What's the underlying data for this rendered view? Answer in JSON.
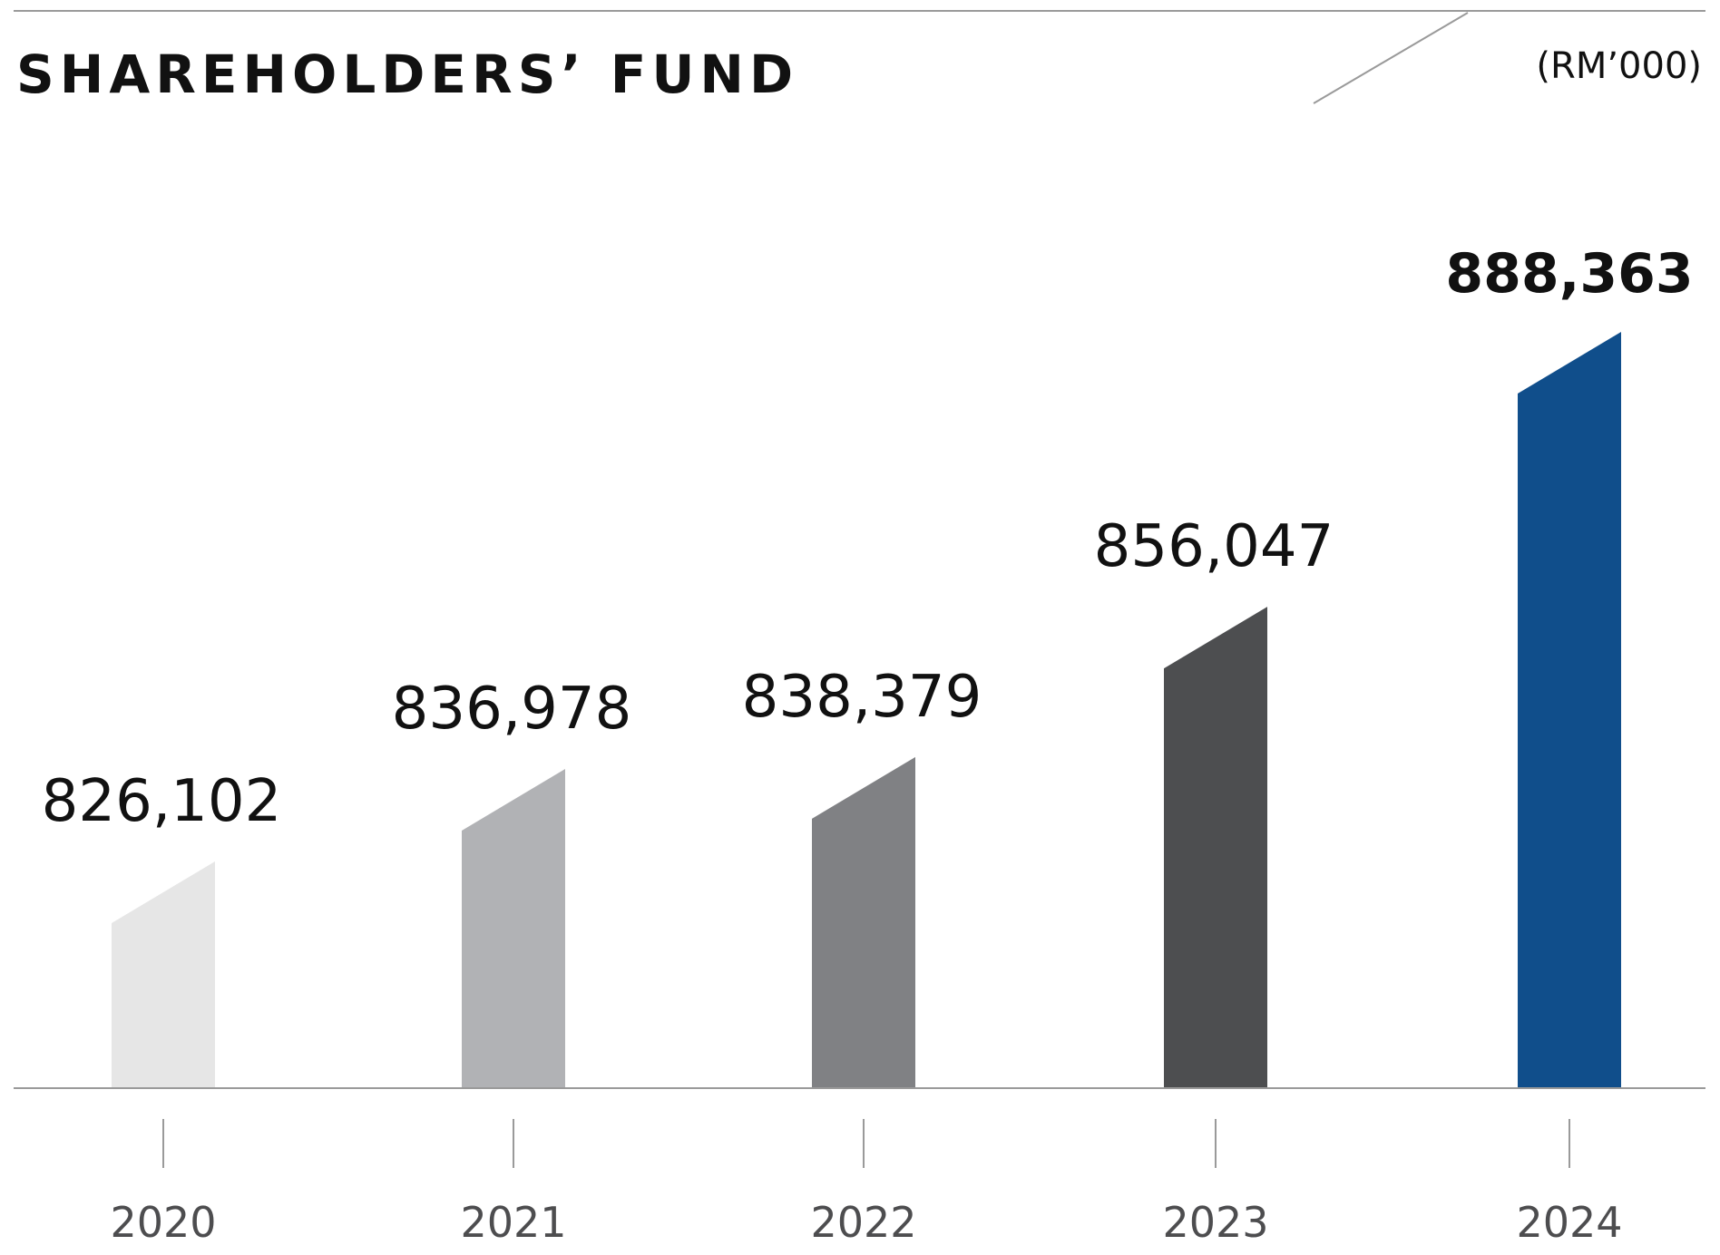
{
  "chart_data": {
    "type": "bar",
    "title": "SHAREHOLDERS’ FUND",
    "unit": "(RM’000)",
    "categories": [
      "2020",
      "2021",
      "2022",
      "2023",
      "2024"
    ],
    "values": [
      826102,
      836978,
      838379,
      856047,
      888363
    ],
    "value_labels": [
      "826,102",
      "836,978",
      "838,379",
      "856,047",
      "888,363"
    ],
    "highlight_index": 4,
    "colors": [
      "#e6e6e6",
      "#b1b2b5",
      "#808184",
      "#4d4e50",
      "#104e8b"
    ],
    "axis_color": "#9a9a9a",
    "text_color": "#111111",
    "tick_label_color": "#4d4d4f",
    "xlabel": "",
    "ylabel": "",
    "ylim": [
      800000,
      900000
    ],
    "grid": false,
    "legend": "none"
  }
}
